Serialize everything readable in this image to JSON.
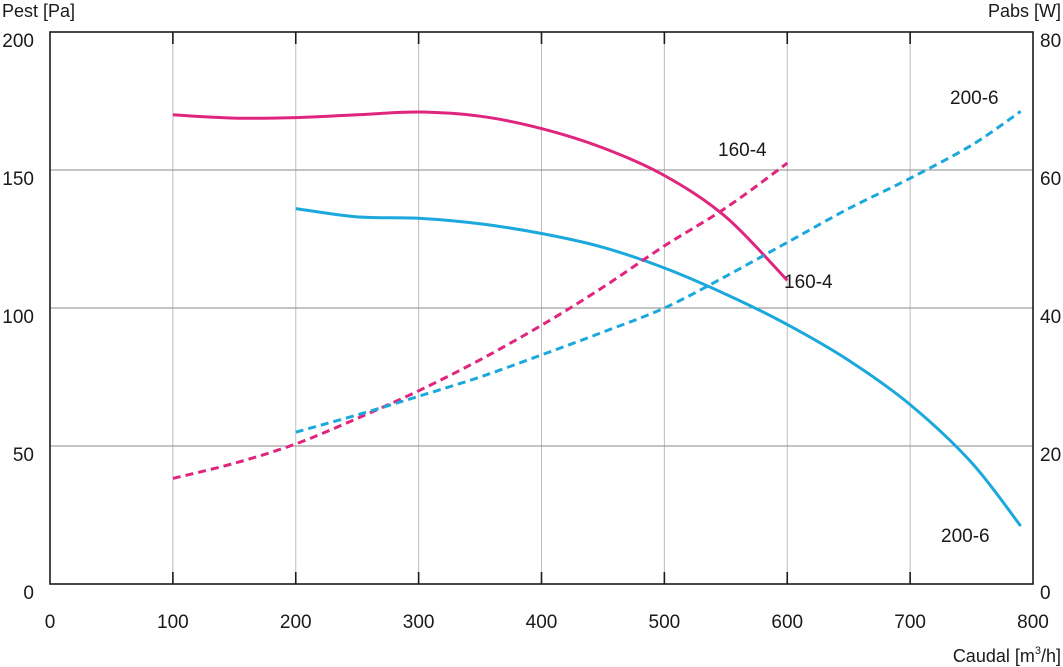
{
  "chart_data": {
    "type": "line",
    "title": "",
    "xlabel": "Caudal [m³/h]",
    "xlabel_parts": {
      "text": "Caudal [m",
      "sup": "3",
      "tail": "/h]"
    },
    "ylabel_left": "Pest [Pa]",
    "ylabel_right": "Pabs [W]",
    "xlim": [
      0,
      800
    ],
    "ylim_left": [
      0,
      200
    ],
    "ylim_right": [
      0,
      80
    ],
    "x_ticks": [
      0,
      100,
      200,
      300,
      400,
      500,
      600,
      700,
      800
    ],
    "y_left_ticks": [
      0,
      50,
      100,
      150,
      200
    ],
    "y_right_ticks": [
      0,
      20,
      40,
      60,
      80
    ],
    "grid": true,
    "colors": {
      "160-4": "#e0257f",
      "200-6": "#1ba8dc"
    },
    "series": [
      {
        "name": "160-4",
        "quantity": "Pest",
        "axis": "left",
        "style": "solid",
        "points": [
          [
            100,
            170
          ],
          [
            150,
            168.8
          ],
          [
            200,
            169
          ],
          [
            250,
            170
          ],
          [
            300,
            171
          ],
          [
            350,
            169.5
          ],
          [
            400,
            165
          ],
          [
            450,
            158
          ],
          [
            500,
            148
          ],
          [
            550,
            133
          ],
          [
            600,
            110
          ]
        ]
      },
      {
        "name": "200-6",
        "quantity": "Pest",
        "axis": "left",
        "style": "solid",
        "points": [
          [
            200,
            136
          ],
          [
            250,
            133
          ],
          [
            300,
            132.5
          ],
          [
            350,
            130.5
          ],
          [
            400,
            127
          ],
          [
            450,
            122
          ],
          [
            500,
            114.5
          ],
          [
            550,
            105
          ],
          [
            600,
            94
          ],
          [
            650,
            81
          ],
          [
            700,
            65
          ],
          [
            750,
            44
          ],
          [
            790,
            21
          ]
        ]
      },
      {
        "name": "160-4",
        "quantity": "Pabs",
        "axis": "right",
        "style": "dashed",
        "points": [
          [
            100,
            15.3
          ],
          [
            150,
            17.5
          ],
          [
            200,
            20.3
          ],
          [
            250,
            24
          ],
          [
            300,
            28
          ],
          [
            350,
            32.5
          ],
          [
            400,
            37.5
          ],
          [
            450,
            43
          ],
          [
            500,
            49
          ],
          [
            550,
            54.5
          ],
          [
            600,
            61
          ]
        ]
      },
      {
        "name": "200-6",
        "quantity": "Pabs",
        "axis": "right",
        "style": "dashed",
        "points": [
          [
            200,
            22
          ],
          [
            250,
            24.5
          ],
          [
            300,
            27.2
          ],
          [
            350,
            30
          ],
          [
            400,
            33.2
          ],
          [
            450,
            36.5
          ],
          [
            500,
            40
          ],
          [
            550,
            44.6
          ],
          [
            600,
            49.5
          ],
          [
            650,
            54.4
          ],
          [
            700,
            58.8
          ],
          [
            750,
            63.6
          ],
          [
            790,
            68.5
          ]
        ]
      }
    ],
    "labels": [
      {
        "text": "160-4",
        "series": "160-4 Pest"
      },
      {
        "text": "200-6",
        "series": "200-6 Pest"
      },
      {
        "text": "160-4",
        "series": "160-4 Pabs"
      },
      {
        "text": "200-6",
        "series": "200-6 Pabs"
      }
    ]
  }
}
